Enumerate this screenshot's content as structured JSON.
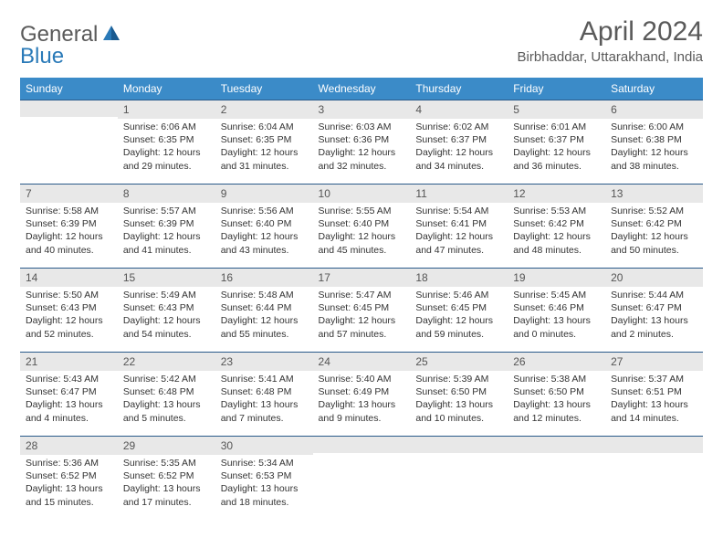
{
  "brand": {
    "part1": "General",
    "part2": "Blue"
  },
  "title": "April 2024",
  "location": "Birbhaddar, Uttarakhand, India",
  "colors": {
    "header_bg": "#3b8bc8",
    "header_text": "#ffffff",
    "daynum_bg": "#e8e8e8",
    "cell_border": "#2a5a8a",
    "brand_gray": "#5a5a5a",
    "brand_blue": "#2a7ab8"
  },
  "typography": {
    "title_fontsize": 30,
    "location_fontsize": 15,
    "header_fontsize": 12,
    "daynum_fontsize": 12,
    "body_fontsize": 10.5
  },
  "day_headers": [
    "Sunday",
    "Monday",
    "Tuesday",
    "Wednesday",
    "Thursday",
    "Friday",
    "Saturday"
  ],
  "weeks": [
    [
      {
        "num": "",
        "lines": []
      },
      {
        "num": "1",
        "lines": [
          "Sunrise: 6:06 AM",
          "Sunset: 6:35 PM",
          "Daylight: 12 hours",
          "and 29 minutes."
        ]
      },
      {
        "num": "2",
        "lines": [
          "Sunrise: 6:04 AM",
          "Sunset: 6:35 PM",
          "Daylight: 12 hours",
          "and 31 minutes."
        ]
      },
      {
        "num": "3",
        "lines": [
          "Sunrise: 6:03 AM",
          "Sunset: 6:36 PM",
          "Daylight: 12 hours",
          "and 32 minutes."
        ]
      },
      {
        "num": "4",
        "lines": [
          "Sunrise: 6:02 AM",
          "Sunset: 6:37 PM",
          "Daylight: 12 hours",
          "and 34 minutes."
        ]
      },
      {
        "num": "5",
        "lines": [
          "Sunrise: 6:01 AM",
          "Sunset: 6:37 PM",
          "Daylight: 12 hours",
          "and 36 minutes."
        ]
      },
      {
        "num": "6",
        "lines": [
          "Sunrise: 6:00 AM",
          "Sunset: 6:38 PM",
          "Daylight: 12 hours",
          "and 38 minutes."
        ]
      }
    ],
    [
      {
        "num": "7",
        "lines": [
          "Sunrise: 5:58 AM",
          "Sunset: 6:39 PM",
          "Daylight: 12 hours",
          "and 40 minutes."
        ]
      },
      {
        "num": "8",
        "lines": [
          "Sunrise: 5:57 AM",
          "Sunset: 6:39 PM",
          "Daylight: 12 hours",
          "and 41 minutes."
        ]
      },
      {
        "num": "9",
        "lines": [
          "Sunrise: 5:56 AM",
          "Sunset: 6:40 PM",
          "Daylight: 12 hours",
          "and 43 minutes."
        ]
      },
      {
        "num": "10",
        "lines": [
          "Sunrise: 5:55 AM",
          "Sunset: 6:40 PM",
          "Daylight: 12 hours",
          "and 45 minutes."
        ]
      },
      {
        "num": "11",
        "lines": [
          "Sunrise: 5:54 AM",
          "Sunset: 6:41 PM",
          "Daylight: 12 hours",
          "and 47 minutes."
        ]
      },
      {
        "num": "12",
        "lines": [
          "Sunrise: 5:53 AM",
          "Sunset: 6:42 PM",
          "Daylight: 12 hours",
          "and 48 minutes."
        ]
      },
      {
        "num": "13",
        "lines": [
          "Sunrise: 5:52 AM",
          "Sunset: 6:42 PM",
          "Daylight: 12 hours",
          "and 50 minutes."
        ]
      }
    ],
    [
      {
        "num": "14",
        "lines": [
          "Sunrise: 5:50 AM",
          "Sunset: 6:43 PM",
          "Daylight: 12 hours",
          "and 52 minutes."
        ]
      },
      {
        "num": "15",
        "lines": [
          "Sunrise: 5:49 AM",
          "Sunset: 6:43 PM",
          "Daylight: 12 hours",
          "and 54 minutes."
        ]
      },
      {
        "num": "16",
        "lines": [
          "Sunrise: 5:48 AM",
          "Sunset: 6:44 PM",
          "Daylight: 12 hours",
          "and 55 minutes."
        ]
      },
      {
        "num": "17",
        "lines": [
          "Sunrise: 5:47 AM",
          "Sunset: 6:45 PM",
          "Daylight: 12 hours",
          "and 57 minutes."
        ]
      },
      {
        "num": "18",
        "lines": [
          "Sunrise: 5:46 AM",
          "Sunset: 6:45 PM",
          "Daylight: 12 hours",
          "and 59 minutes."
        ]
      },
      {
        "num": "19",
        "lines": [
          "Sunrise: 5:45 AM",
          "Sunset: 6:46 PM",
          "Daylight: 13 hours",
          "and 0 minutes."
        ]
      },
      {
        "num": "20",
        "lines": [
          "Sunrise: 5:44 AM",
          "Sunset: 6:47 PM",
          "Daylight: 13 hours",
          "and 2 minutes."
        ]
      }
    ],
    [
      {
        "num": "21",
        "lines": [
          "Sunrise: 5:43 AM",
          "Sunset: 6:47 PM",
          "Daylight: 13 hours",
          "and 4 minutes."
        ]
      },
      {
        "num": "22",
        "lines": [
          "Sunrise: 5:42 AM",
          "Sunset: 6:48 PM",
          "Daylight: 13 hours",
          "and 5 minutes."
        ]
      },
      {
        "num": "23",
        "lines": [
          "Sunrise: 5:41 AM",
          "Sunset: 6:48 PM",
          "Daylight: 13 hours",
          "and 7 minutes."
        ]
      },
      {
        "num": "24",
        "lines": [
          "Sunrise: 5:40 AM",
          "Sunset: 6:49 PM",
          "Daylight: 13 hours",
          "and 9 minutes."
        ]
      },
      {
        "num": "25",
        "lines": [
          "Sunrise: 5:39 AM",
          "Sunset: 6:50 PM",
          "Daylight: 13 hours",
          "and 10 minutes."
        ]
      },
      {
        "num": "26",
        "lines": [
          "Sunrise: 5:38 AM",
          "Sunset: 6:50 PM",
          "Daylight: 13 hours",
          "and 12 minutes."
        ]
      },
      {
        "num": "27",
        "lines": [
          "Sunrise: 5:37 AM",
          "Sunset: 6:51 PM",
          "Daylight: 13 hours",
          "and 14 minutes."
        ]
      }
    ],
    [
      {
        "num": "28",
        "lines": [
          "Sunrise: 5:36 AM",
          "Sunset: 6:52 PM",
          "Daylight: 13 hours",
          "and 15 minutes."
        ]
      },
      {
        "num": "29",
        "lines": [
          "Sunrise: 5:35 AM",
          "Sunset: 6:52 PM",
          "Daylight: 13 hours",
          "and 17 minutes."
        ]
      },
      {
        "num": "30",
        "lines": [
          "Sunrise: 5:34 AM",
          "Sunset: 6:53 PM",
          "Daylight: 13 hours",
          "and 18 minutes."
        ]
      },
      {
        "num": "",
        "lines": []
      },
      {
        "num": "",
        "lines": []
      },
      {
        "num": "",
        "lines": []
      },
      {
        "num": "",
        "lines": []
      }
    ]
  ]
}
